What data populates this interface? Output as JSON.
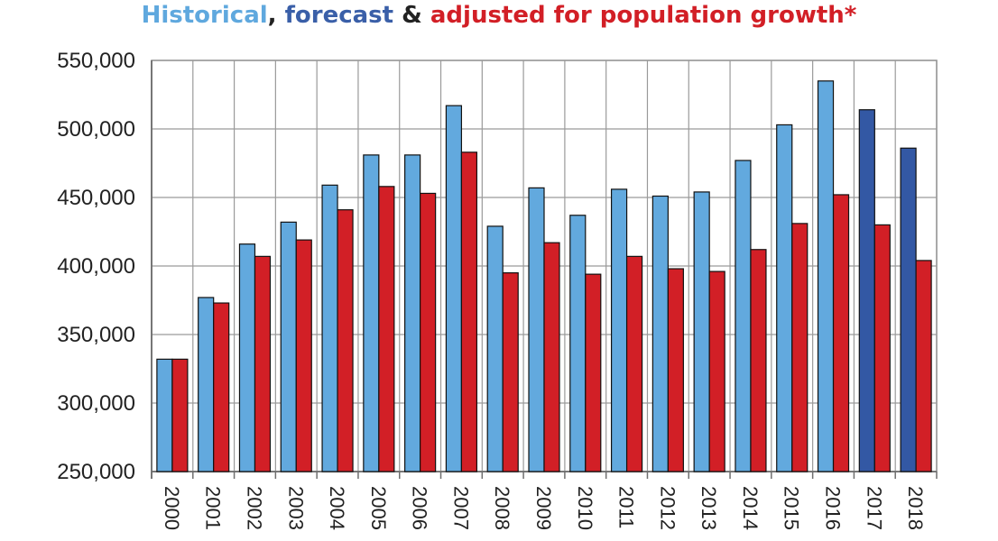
{
  "chart_data": {
    "type": "bar",
    "title_parts": [
      {
        "text": "Historical",
        "color": "#5fa8de"
      },
      {
        "text": ", ",
        "color": "#222222"
      },
      {
        "text": "forecast",
        "color": "#3a5fa8"
      },
      {
        "text": " & ",
        "color": "#222222"
      },
      {
        "text": "adjusted for population growth*",
        "color": "#d21f26"
      }
    ],
    "categories": [
      "2000",
      "2001",
      "2002",
      "2003",
      "2004",
      "2005",
      "2006",
      "2007",
      "2008",
      "2009",
      "2010",
      "2011",
      "2012",
      "2013",
      "2014",
      "2015",
      "2016",
      "2017",
      "2018"
    ],
    "series": [
      {
        "values": [
          332000,
          377000,
          416000,
          432000,
          459000,
          481000,
          481000,
          517000,
          429000,
          457000,
          437000,
          456000,
          451000,
          454000,
          477000,
          503000,
          535000,
          514000,
          486000
        ],
        "colors": [
          "#62a9de",
          "#62a9de",
          "#62a9de",
          "#62a9de",
          "#62a9de",
          "#62a9de",
          "#62a9de",
          "#62a9de",
          "#62a9de",
          "#62a9de",
          "#62a9de",
          "#62a9de",
          "#62a9de",
          "#62a9de",
          "#62a9de",
          "#62a9de",
          "#62a9de",
          "#3358a4",
          "#3358a4"
        ]
      },
      {
        "values": [
          332000,
          373000,
          407000,
          419000,
          441000,
          458000,
          453000,
          483000,
          395000,
          417000,
          394000,
          407000,
          398000,
          396000,
          412000,
          431000,
          452000,
          430000,
          404000
        ],
        "color": "#d21f26"
      }
    ],
    "ylim": [
      250000,
      550000
    ],
    "yticks": [
      250000,
      300000,
      350000,
      400000,
      450000,
      500000,
      550000
    ],
    "ytick_labels": [
      "250,000",
      "300,000",
      "350,000",
      "400,000",
      "450,000",
      "500,000",
      "550,000"
    ],
    "grid": true,
    "xlabel": "",
    "ylabel": ""
  }
}
